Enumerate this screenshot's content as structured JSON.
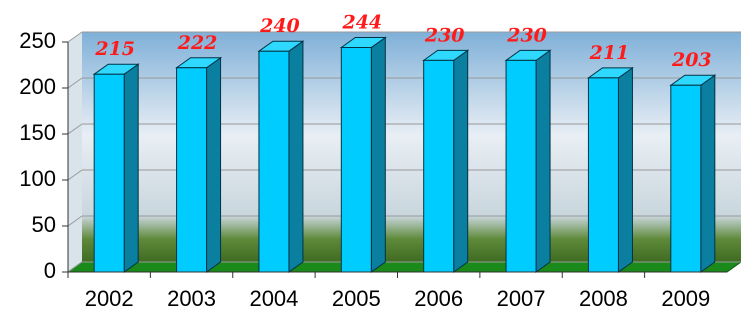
{
  "chart_data": {
    "type": "bar3d",
    "categories": [
      "2002",
      "2003",
      "2004",
      "2005",
      "2006",
      "2007",
      "2008",
      "2009"
    ],
    "values": [
      215,
      222,
      240,
      244,
      230,
      230,
      211,
      203
    ],
    "color": "#00ccff",
    "label_color": "#ff1a1a",
    "ylim": [
      0,
      250
    ],
    "yticks": [
      0,
      50,
      100,
      150,
      200,
      250
    ],
    "grid": true
  }
}
